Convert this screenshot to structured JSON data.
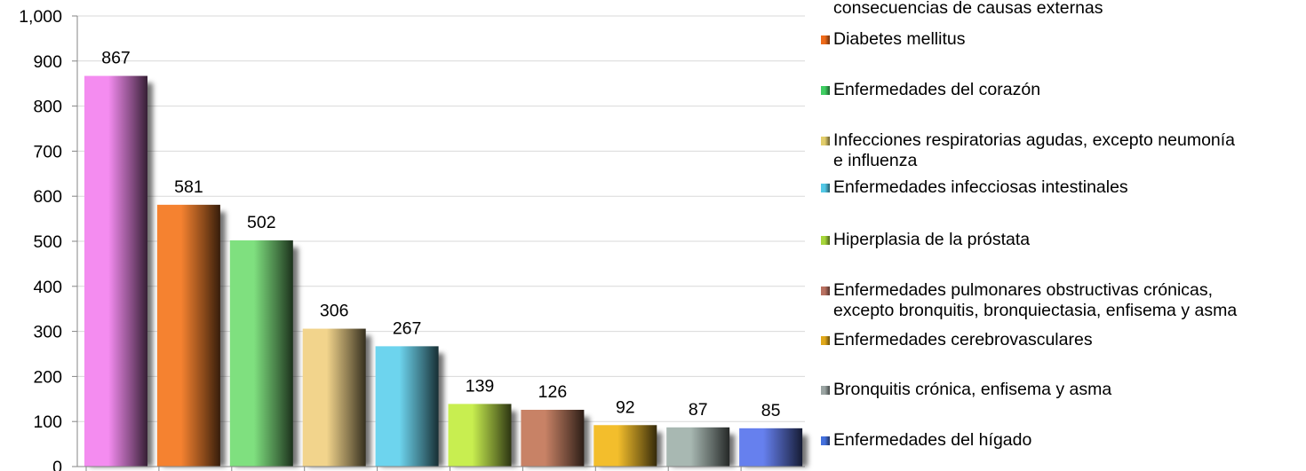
{
  "chart_data": {
    "type": "bar",
    "title": "",
    "xlabel": "",
    "ylabel": "",
    "ylim": [
      0,
      1000
    ],
    "yticks": [
      0,
      100,
      200,
      300,
      400,
      500,
      600,
      700,
      800,
      900,
      1000
    ],
    "ytick_labels": [
      "0",
      "100",
      "200",
      "300",
      "400",
      "500",
      "600",
      "700",
      "800",
      "900",
      "1,000"
    ],
    "grid": true,
    "legend_position": "right",
    "categories": [
      "consecuencias de causas externas",
      "Diabetes mellitus",
      "Enfermedades del corazón",
      "Infecciones respiratorias agudas, excepto neumonía\ne influenza",
      "Enfermedades infecciosas intestinales",
      "Hiperplasia de la próstata",
      "Enfermedades pulmonares obstructivas crónicas,\nexcepto bronquitis, bronquiectasia, enfisema y asma",
      "Enfermedades cerebrovasculares",
      "Bronquitis crónica, enfisema y asma",
      "Enfermedades del hígado"
    ],
    "values": [
      867,
      581,
      502,
      306,
      267,
      139,
      126,
      92,
      87,
      85
    ],
    "value_labels": [
      "867",
      "581",
      "502",
      "306",
      "267",
      "139",
      "126",
      "92",
      "87",
      "85"
    ],
    "colors": [
      "#F48CF0",
      "#F58230",
      "#7FE07F",
      "#F2D48C",
      "#6DD4EE",
      "#C8EE50",
      "#C88266",
      "#F3BE2C",
      "#A8B8B2",
      "#6680EE"
    ],
    "legend_swatch_colors": [
      "#F48CF0",
      "#EE6A1A",
      "#3FCE62",
      "#E2CD6A",
      "#52C8E6",
      "#A6D63A",
      "#B87060",
      "#E0A81A",
      "#9AA4A2",
      "#4470DD"
    ]
  }
}
